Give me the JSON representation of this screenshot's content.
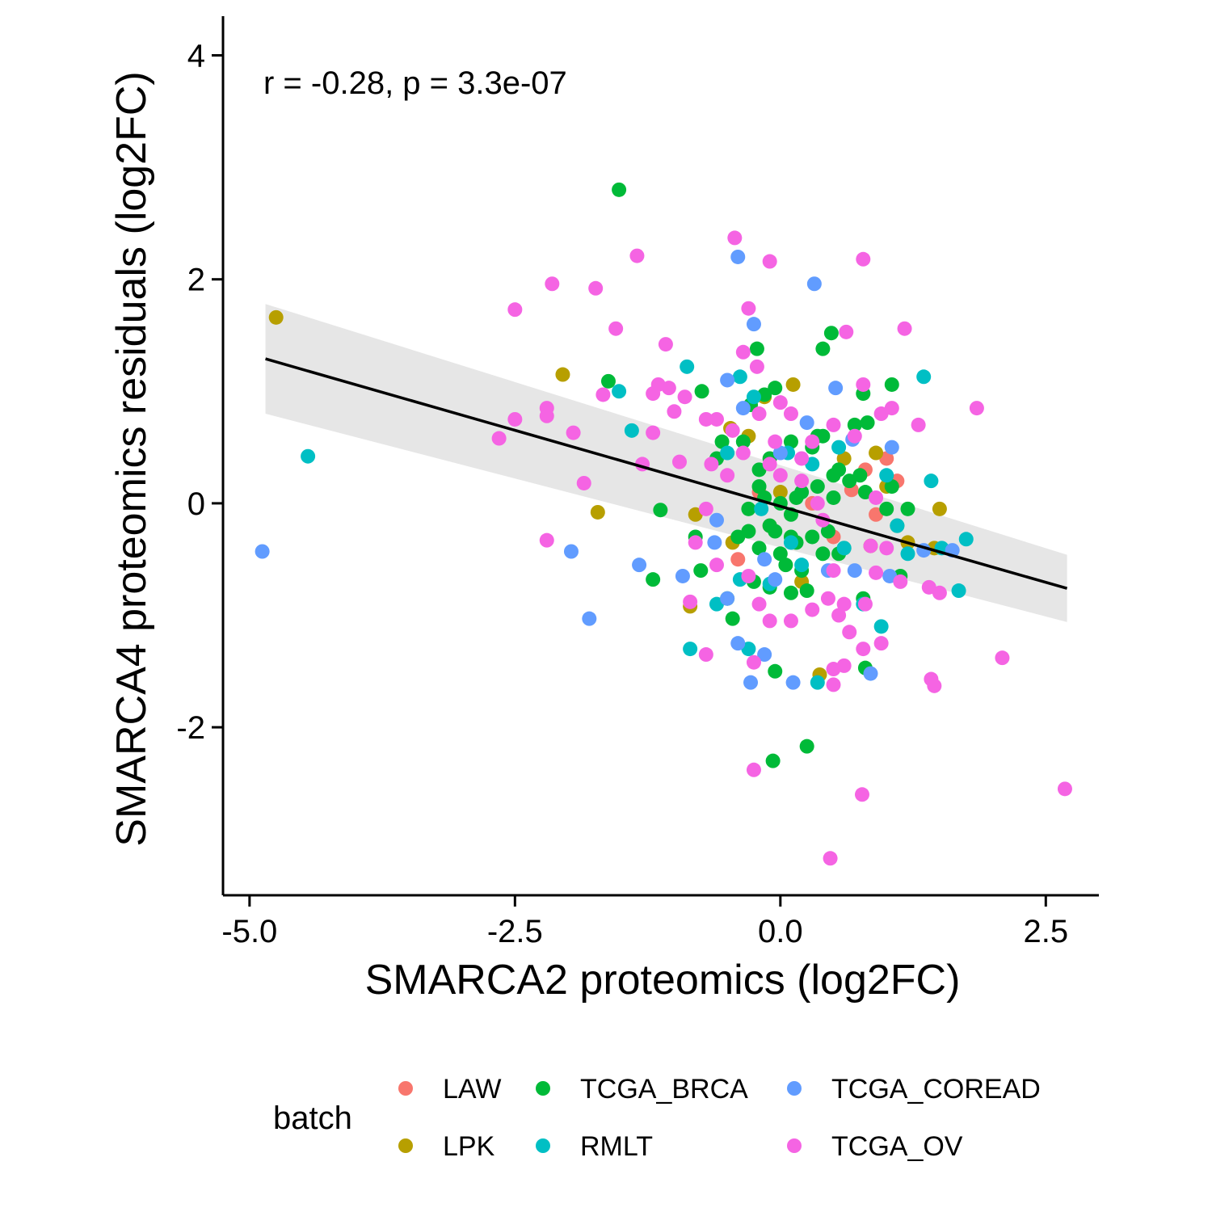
{
  "chart_data": {
    "type": "scatter",
    "xlabel": "SMARCA2 proteomics (log2FC)",
    "ylabel": "SMARCA4 proteomics residuals (log2FC)",
    "annotation": "r = -0.28, p = 3.3e-07",
    "xlim": [
      -5.25,
      3.0
    ],
    "ylim": [
      -3.5,
      4.35
    ],
    "x_ticks": [
      -5.0,
      -2.5,
      0.0,
      2.5
    ],
    "x_tick_labels": [
      "-5.0",
      "-2.5",
      "0.0",
      "2.5"
    ],
    "y_ticks": [
      -2,
      0,
      2,
      4
    ],
    "y_tick_labels": [
      "-2",
      "0",
      "2",
      "4"
    ],
    "grid": false,
    "legend": {
      "title": "batch",
      "placement": "bottom"
    },
    "regression": {
      "x": [
        -4.85,
        2.7
      ],
      "y": [
        1.29,
        -0.76
      ],
      "ci_upper": [
        1.78,
        -0.46
      ],
      "ci_lower": [
        0.8,
        -1.06
      ]
    },
    "series": [
      {
        "name": "LAW",
        "color": "#F8766D",
        "points": [
          [
            0.67,
            0.12
          ],
          [
            1.0,
            0.4
          ],
          [
            -0.4,
            -0.5
          ],
          [
            0.8,
            0.3
          ],
          [
            1.1,
            0.2
          ],
          [
            -0.1,
            -0.2
          ],
          [
            0.3,
            0.0
          ],
          [
            0.5,
            -0.3
          ],
          [
            0.9,
            -0.1
          ],
          [
            -0.2,
            0.1
          ]
        ]
      },
      {
        "name": "LPK",
        "color": "#B79F00",
        "points": [
          [
            -4.75,
            1.66
          ],
          [
            -2.05,
            1.15
          ],
          [
            -1.72,
            -0.08
          ],
          [
            0.12,
            1.06
          ],
          [
            -0.47,
            0.67
          ],
          [
            0.37,
            -1.53
          ],
          [
            -0.8,
            -0.1
          ],
          [
            -0.85,
            -0.92
          ],
          [
            0.9,
            0.45
          ],
          [
            1.5,
            -0.05
          ],
          [
            1.0,
            0.15
          ],
          [
            -0.3,
            0.6
          ],
          [
            0.6,
            0.4
          ],
          [
            0.2,
            -0.7
          ],
          [
            -0.45,
            -0.35
          ],
          [
            1.2,
            -0.35
          ],
          [
            0.85,
            -0.38
          ],
          [
            1.45,
            -0.4
          ],
          [
            0.0,
            0.1
          ],
          [
            -0.15,
            0.95
          ]
        ]
      },
      {
        "name": "TCGA_BRCA",
        "color": "#00BA38",
        "points": [
          [
            -1.52,
            2.8
          ],
          [
            -0.07,
            -2.3
          ],
          [
            0.25,
            -2.17
          ],
          [
            0.48,
            1.52
          ],
          [
            0.4,
            1.38
          ],
          [
            -0.22,
            1.38
          ],
          [
            -1.62,
            1.09
          ],
          [
            -0.74,
            1.0
          ],
          [
            1.05,
            1.06
          ],
          [
            0.78,
            0.98
          ],
          [
            -0.28,
            0.88
          ],
          [
            -0.15,
            0.97
          ],
          [
            -0.05,
            1.03
          ],
          [
            0.82,
            0.72
          ],
          [
            -0.35,
            0.55
          ],
          [
            -0.55,
            0.55
          ],
          [
            -0.2,
            0.3
          ],
          [
            0.1,
            0.55
          ],
          [
            0.3,
            0.5
          ],
          [
            0.4,
            0.6
          ],
          [
            0.55,
            0.3
          ],
          [
            0.65,
            0.2
          ],
          [
            0.75,
            0.25
          ],
          [
            -0.1,
            0.4
          ],
          [
            -0.6,
            0.4
          ],
          [
            -0.2,
            0.15
          ],
          [
            0.0,
            0.0
          ],
          [
            0.2,
            0.1
          ],
          [
            0.35,
            0.15
          ],
          [
            0.5,
            0.05
          ],
          [
            -0.3,
            -0.05
          ],
          [
            -0.1,
            -0.2
          ],
          [
            0.1,
            -0.1
          ],
          [
            0.3,
            -0.3
          ],
          [
            0.45,
            -0.25
          ],
          [
            0.6,
            -0.4
          ],
          [
            -0.4,
            -0.3
          ],
          [
            -0.2,
            -0.4
          ],
          [
            0.0,
            -0.45
          ],
          [
            0.15,
            -0.35
          ],
          [
            -0.25,
            -0.7
          ],
          [
            -0.1,
            -0.75
          ],
          [
            0.1,
            -0.8
          ],
          [
            0.25,
            -0.78
          ],
          [
            0.4,
            -0.45
          ],
          [
            -0.5,
            -0.85
          ],
          [
            -1.13,
            -0.06
          ],
          [
            -1.2,
            -0.68
          ],
          [
            -0.45,
            -1.03
          ],
          [
            -0.05,
            -1.5
          ],
          [
            0.8,
            -1.47
          ],
          [
            0.78,
            -0.85
          ],
          [
            1.13,
            -0.65
          ],
          [
            1.2,
            -0.05
          ],
          [
            1.0,
            -0.05
          ],
          [
            1.1,
            -0.2
          ],
          [
            0.8,
            0.1
          ],
          [
            -0.75,
            -0.6
          ],
          [
            -0.8,
            -0.3
          ],
          [
            0.2,
            -0.6
          ],
          [
            0.55,
            -0.45
          ],
          [
            -0.05,
            -0.25
          ],
          [
            0.05,
            -0.55
          ],
          [
            0.35,
            0.6
          ],
          [
            0.15,
            0.05
          ],
          [
            -0.15,
            0.05
          ],
          [
            0.1,
            -0.3
          ],
          [
            -0.3,
            -0.25
          ],
          [
            0.5,
            0.25
          ],
          [
            0.7,
            0.7
          ],
          [
            1.05,
            0.15
          ]
        ]
      },
      {
        "name": "RMLT",
        "color": "#00BFC4",
        "points": [
          [
            -4.45,
            0.42
          ],
          [
            -1.52,
            1.0
          ],
          [
            -1.4,
            0.65
          ],
          [
            -0.88,
            1.22
          ],
          [
            -0.85,
            -1.3
          ],
          [
            -0.38,
            1.13
          ],
          [
            -0.25,
            0.95
          ],
          [
            -0.38,
            -0.68
          ],
          [
            -0.3,
            -1.3
          ],
          [
            -0.18,
            -0.05
          ],
          [
            -0.1,
            -0.72
          ],
          [
            0.07,
            0.45
          ],
          [
            0.1,
            -0.35
          ],
          [
            0.35,
            -1.6
          ],
          [
            0.55,
            0.5
          ],
          [
            0.6,
            -0.4
          ],
          [
            0.78,
            -0.9
          ],
          [
            0.95,
            -1.1
          ],
          [
            1.0,
            0.25
          ],
          [
            1.1,
            -0.2
          ],
          [
            1.2,
            -0.45
          ],
          [
            1.35,
            1.13
          ],
          [
            1.42,
            0.2
          ],
          [
            1.52,
            -0.4
          ],
          [
            1.68,
            -0.78
          ],
          [
            1.75,
            -0.32
          ],
          [
            -0.6,
            -0.9
          ],
          [
            0.2,
            -0.55
          ],
          [
            -0.5,
            0.45
          ],
          [
            0.3,
            0.35
          ]
        ]
      },
      {
        "name": "TCGA_COREAD",
        "color": "#619CFF",
        "points": [
          [
            -4.88,
            -0.43
          ],
          [
            -1.97,
            -0.43
          ],
          [
            -1.8,
            -1.03
          ],
          [
            -1.33,
            -0.55
          ],
          [
            -0.92,
            -0.65
          ],
          [
            -0.6,
            -0.15
          ],
          [
            -0.62,
            -0.35
          ],
          [
            -0.5,
            1.1
          ],
          [
            -0.4,
            2.2
          ],
          [
            -0.35,
            0.85
          ],
          [
            -0.25,
            1.6
          ],
          [
            -0.5,
            -0.85
          ],
          [
            -0.4,
            -1.25
          ],
          [
            -0.28,
            -1.6
          ],
          [
            -0.15,
            -1.35
          ],
          [
            -0.05,
            -0.68
          ],
          [
            0.12,
            -1.6
          ],
          [
            0.25,
            0.72
          ],
          [
            0.32,
            1.96
          ],
          [
            0.45,
            -0.6
          ],
          [
            0.52,
            1.03
          ],
          [
            0.68,
            0.57
          ],
          [
            0.7,
            -0.6
          ],
          [
            0.85,
            -1.52
          ],
          [
            1.03,
            -0.65
          ],
          [
            1.05,
            0.5
          ],
          [
            1.35,
            -0.42
          ],
          [
            1.62,
            -0.42
          ],
          [
            0.0,
            0.45
          ],
          [
            -0.15,
            -0.5
          ]
        ]
      },
      {
        "name": "TCGA_OV",
        "color": "#F564E3",
        "points": [
          [
            -0.43,
            2.37
          ],
          [
            -0.1,
            2.16
          ],
          [
            0.78,
            2.18
          ],
          [
            -1.35,
            2.21
          ],
          [
            -2.15,
            1.96
          ],
          [
            -1.74,
            1.92
          ],
          [
            -2.5,
            1.73
          ],
          [
            -0.3,
            1.74
          ],
          [
            0.62,
            1.53
          ],
          [
            1.17,
            1.56
          ],
          [
            -1.55,
            1.56
          ],
          [
            -1.08,
            1.42
          ],
          [
            -0.35,
            1.35
          ],
          [
            -0.22,
            1.22
          ],
          [
            -1.67,
            0.97
          ],
          [
            -1.15,
            1.06
          ],
          [
            -1.05,
            1.03
          ],
          [
            -0.9,
            0.95
          ],
          [
            -1.0,
            0.82
          ],
          [
            -0.7,
            0.75
          ],
          [
            -2.2,
            0.85
          ],
          [
            -2.5,
            0.75
          ],
          [
            -2.65,
            0.58
          ],
          [
            -2.2,
            0.78
          ],
          [
            -1.95,
            0.63
          ],
          [
            -1.85,
            0.18
          ],
          [
            -1.2,
            0.63
          ],
          [
            -1.2,
            0.98
          ],
          [
            -1.3,
            0.35
          ],
          [
            -0.95,
            0.37
          ],
          [
            -0.6,
            0.75
          ],
          [
            -0.45,
            0.65
          ],
          [
            -0.2,
            0.8
          ],
          [
            0.0,
            0.9
          ],
          [
            0.1,
            0.8
          ],
          [
            0.3,
            0.55
          ],
          [
            0.5,
            0.7
          ],
          [
            0.7,
            0.6
          ],
          [
            0.95,
            0.8
          ],
          [
            1.05,
            0.85
          ],
          [
            1.3,
            0.7
          ],
          [
            1.85,
            0.85
          ],
          [
            0.78,
            1.06
          ],
          [
            -2.2,
            -0.33
          ],
          [
            -0.7,
            -0.05
          ],
          [
            -0.8,
            -0.35
          ],
          [
            -0.6,
            -0.55
          ],
          [
            -0.3,
            -0.65
          ],
          [
            -0.2,
            -0.9
          ],
          [
            -0.1,
            -1.05
          ],
          [
            0.1,
            -1.05
          ],
          [
            0.3,
            -0.95
          ],
          [
            0.45,
            -0.85
          ],
          [
            0.55,
            -1.0
          ],
          [
            0.65,
            -1.15
          ],
          [
            0.78,
            -1.3
          ],
          [
            0.95,
            -1.25
          ],
          [
            -0.7,
            -1.35
          ],
          [
            -0.25,
            -1.42
          ],
          [
            0.5,
            -1.48
          ],
          [
            0.5,
            -1.62
          ],
          [
            0.6,
            -1.45
          ],
          [
            1.42,
            -1.57
          ],
          [
            1.45,
            -1.63
          ],
          [
            2.09,
            -1.38
          ],
          [
            -0.25,
            -2.38
          ],
          [
            0.77,
            -2.6
          ],
          [
            0.47,
            -3.17
          ],
          [
            2.68,
            -2.55
          ],
          [
            1.13,
            -0.7
          ],
          [
            1.4,
            -0.75
          ],
          [
            1.5,
            -0.8
          ],
          [
            0.9,
            -0.62
          ],
          [
            0.85,
            -0.38
          ],
          [
            1.0,
            -0.4
          ],
          [
            0.2,
            0.4
          ],
          [
            -0.1,
            0.35
          ],
          [
            -0.35,
            0.45
          ],
          [
            0.0,
            0.25
          ],
          [
            0.2,
            0.2
          ],
          [
            -0.5,
            0.25
          ],
          [
            -0.65,
            0.35
          ],
          [
            0.5,
            -0.6
          ],
          [
            0.4,
            -0.15
          ],
          [
            -0.05,
            0.55
          ],
          [
            0.35,
            0.0
          ],
          [
            0.9,
            0.05
          ],
          [
            0.6,
            -0.9
          ],
          [
            -0.85,
            -0.88
          ],
          [
            0.8,
            -0.9
          ]
        ]
      }
    ]
  }
}
